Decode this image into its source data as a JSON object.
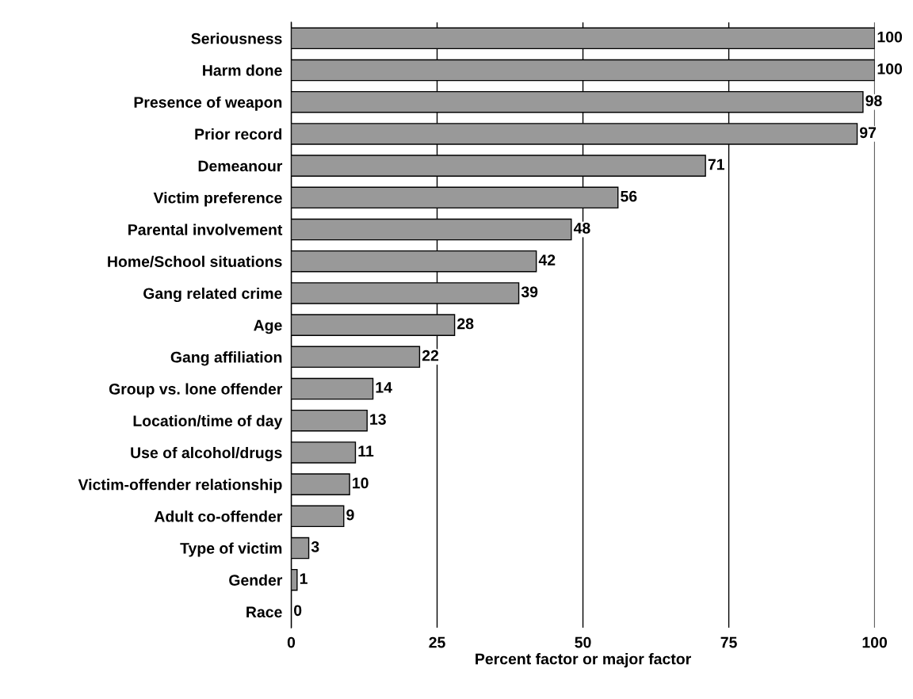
{
  "chart_data": {
    "type": "bar",
    "orientation": "horizontal",
    "xlabel": "Percent factor or major factor",
    "categories": [
      "Seriousness",
      "Harm done",
      "Presence of weapon",
      "Prior record",
      "Demeanour",
      "Victim preference",
      "Parental involvement",
      "Home/School situations",
      "Gang related crime",
      "Age",
      "Gang affiliation",
      "Group vs. lone offender",
      "Location/time of day",
      "Use of alcohol/drugs",
      "Victim-offender relationship",
      "Adult co-offender",
      "Type of victim",
      "Gender",
      "Race"
    ],
    "values": [
      100,
      100,
      98,
      97,
      71,
      56,
      48,
      42,
      39,
      28,
      22,
      14,
      13,
      11,
      10,
      9,
      3,
      1,
      0
    ],
    "color": "#999999",
    "data_labels": true,
    "xlim": [
      0,
      100
    ],
    "xticks": [
      0,
      25,
      50,
      75,
      100
    ],
    "grid": "x",
    "legend": false
  }
}
